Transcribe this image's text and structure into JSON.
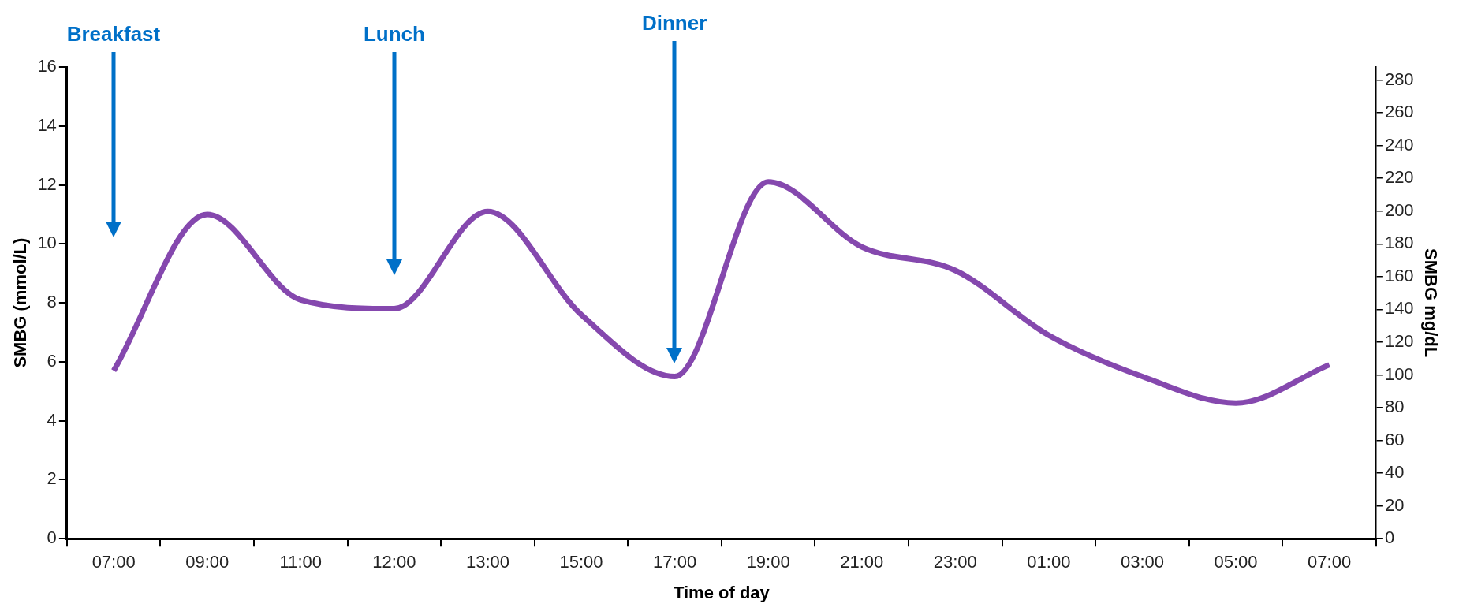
{
  "chart_data": {
    "type": "line",
    "categories": [
      "07:00",
      "09:00",
      "11:00",
      "12:00",
      "13:00",
      "15:00",
      "17:00",
      "19:00",
      "21:00",
      "23:00",
      "01:00",
      "03:00",
      "05:00",
      "07:00"
    ],
    "series": [
      {
        "color": "#8548ae",
        "values": [
          5.7,
          11.0,
          8.1,
          7.8,
          11.1,
          7.6,
          5.5,
          12.1,
          9.9,
          9.1,
          6.9,
          5.5,
          4.6,
          5.9
        ]
      }
    ],
    "xlabel": "Time of day",
    "ylabel": "SMBG (mmol/L)",
    "y2label": "SMBG mg/dL",
    "ylim": [
      0,
      16
    ],
    "yticks": [
      0,
      2,
      4,
      6,
      8,
      10,
      12,
      14,
      16
    ],
    "y2lim": [
      0,
      288
    ],
    "y2ticks": [
      0,
      20,
      40,
      60,
      80,
      100,
      120,
      140,
      160,
      180,
      200,
      220,
      240,
      260,
      280
    ],
    "annotations": [
      "Breakfast",
      "Lunch",
      "Dinner"
    ],
    "grid": false,
    "legend": false,
    "marker": "none",
    "line_style": "solid"
  }
}
